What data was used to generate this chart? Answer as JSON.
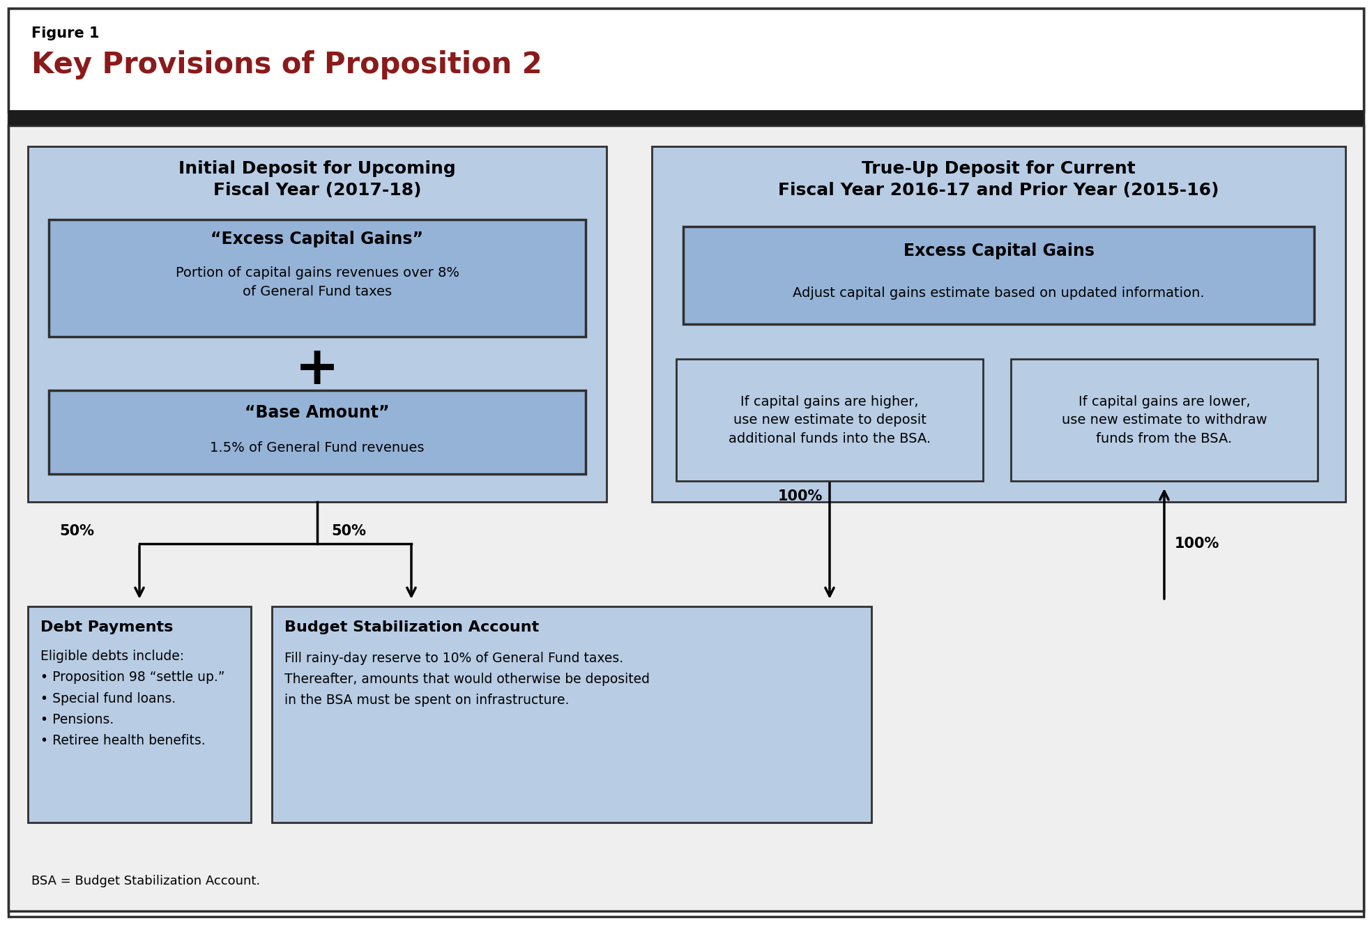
{
  "figure_label": "Figure 1",
  "title": "Key Provisions of Proposition 2",
  "title_color": "#8B1A1A",
  "figure_label_color": "#000000",
  "bg_outer": "#ffffff",
  "bg_light_blue": "#b8cce4",
  "bg_medium_blue": "#95b3d7",
  "border_dark": "#2f2f2f",
  "left_box": {
    "title": "Initial Deposit for Upcoming\nFiscal Year (2017-18)",
    "bg": "#b8cce4"
  },
  "ecg_box": {
    "title": "“Excess Capital Gains”",
    "subtitle": "Portion of capital gains revenues over 8%\nof General Fund taxes",
    "bg": "#95b3d7"
  },
  "base_box": {
    "title": "“Base Amount”",
    "subtitle": "1.5% of General Fund revenues",
    "bg": "#95b3d7"
  },
  "right_box": {
    "title": "True-Up Deposit for Current\nFiscal Year 2016-17 and Prior Year (2015-16)",
    "bg": "#b8cce4"
  },
  "excess_cg_box": {
    "title": "Excess Capital Gains",
    "subtitle": "Adjust capital gains estimate based on updated information.",
    "bg": "#95b3d7"
  },
  "higher_box": {
    "text": "If capital gains are higher,\nuse new estimate to deposit\nadditional funds into the BSA.",
    "bg": "#b8cce4"
  },
  "lower_box": {
    "text": "If capital gains are lower,\nuse new estimate to withdraw\nfunds from the BSA.",
    "bg": "#b8cce4"
  },
  "debt_box": {
    "title": "Debt Payments",
    "text": "Eligible debts include:\n• Proposition 98 “settle up.”\n• Special fund loans.\n• Pensions.\n• Retiree health benefits.",
    "bg": "#b8cce4"
  },
  "bsa_box": {
    "title": "Budget Stabilization Account",
    "text": "Fill rainy-day reserve to 10% of General Fund taxes.\nThereafter, amounts that would otherwise be deposited\nin the BSA must be spent on infrastructure.",
    "bg": "#b8cce4"
  },
  "footnote": "BSA = Budget Stabilization Account.",
  "arrow_color": "#000000"
}
